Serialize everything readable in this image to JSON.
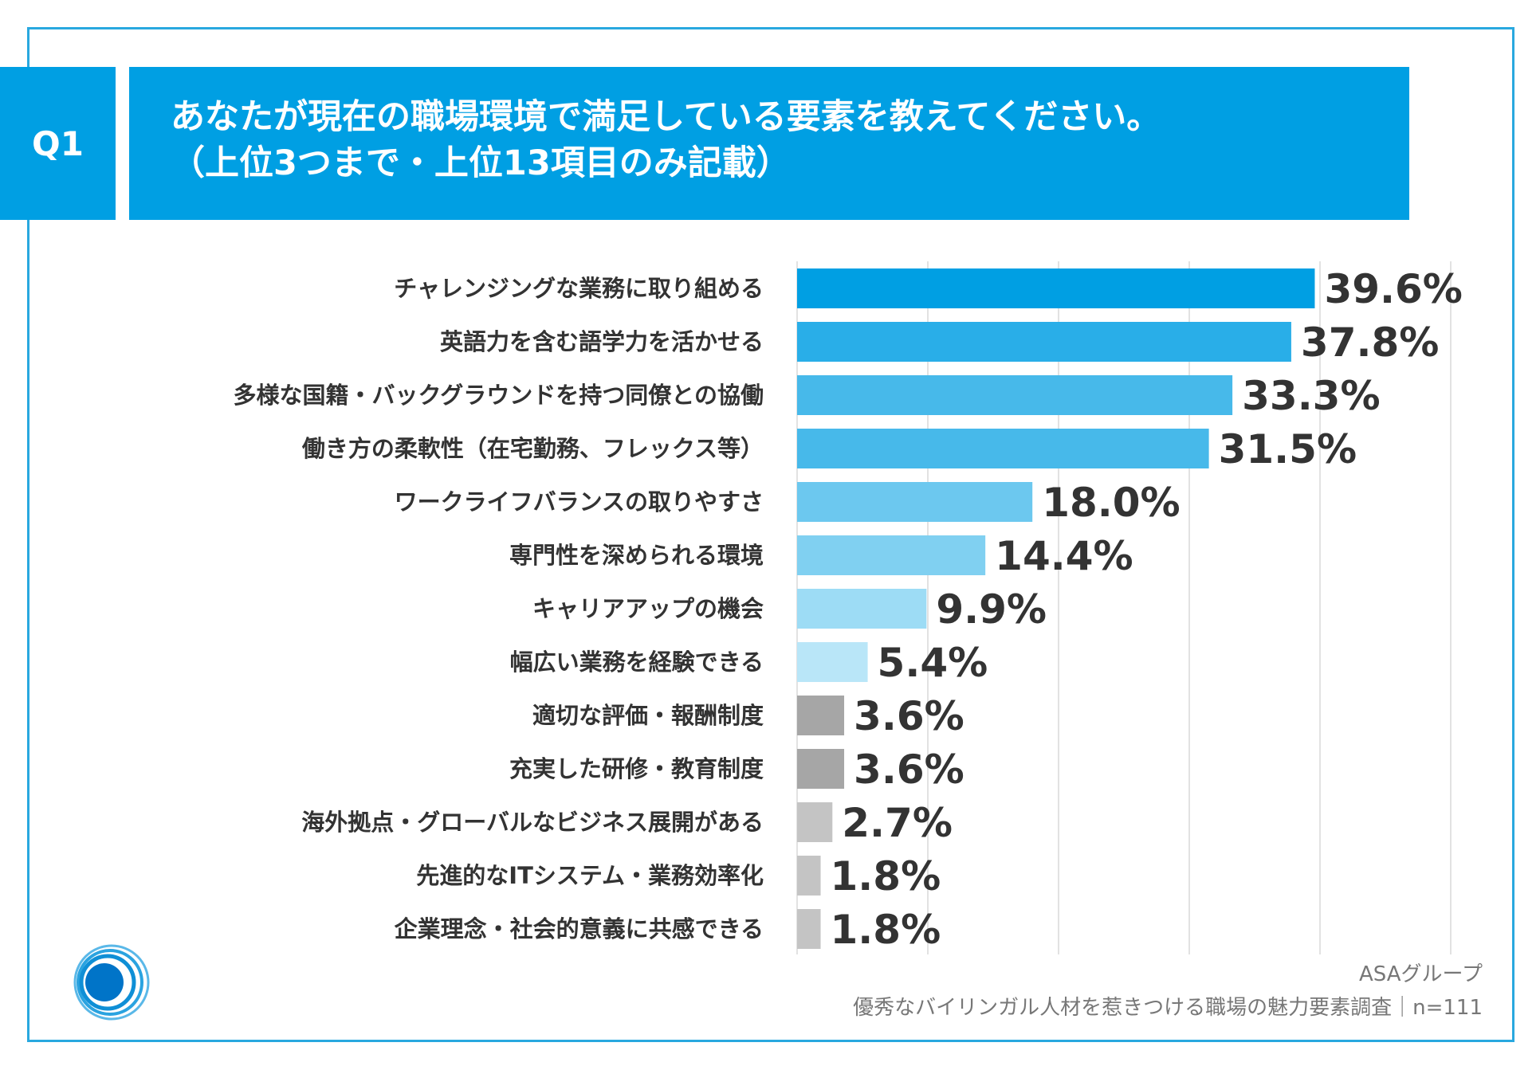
{
  "header": {
    "question_id": "Q1",
    "title_line1": "あなたが現在の職場環境で満足している要素を教えてください。",
    "title_line2": "（上位3つまで・上位13項目のみ記載）"
  },
  "chart_data": {
    "type": "bar",
    "orientation": "horizontal",
    "unit": "%",
    "xlim": [
      0,
      50
    ],
    "grid": true,
    "categories": [
      "チャレンジングな業務に取り組める",
      "英語力を含む語学力を活かせる",
      "多様な国籍・バックグラウンドを持つ同僚との協働",
      "働き方の柔軟性（在宅勤務、フレックス等）",
      "ワークライフバランスの取りやすさ",
      "専門性を深められる環境",
      "キャリアアップの機会",
      "幅広い業務を経験できる",
      "適切な評価・報酬制度",
      "充実した研修・教育制度",
      "海外拠点・グローバルなビジネス展開がある",
      "先進的なITシステム・業務効率化",
      "企業理念・社会的意義に共感できる"
    ],
    "values": [
      39.6,
      37.8,
      33.3,
      31.5,
      18.0,
      14.4,
      9.9,
      5.4,
      3.6,
      3.6,
      2.7,
      1.8,
      1.8
    ],
    "value_labels": [
      "39.6%",
      "37.8%",
      "33.3%",
      "31.5%",
      "18.0%",
      "14.4%",
      "9.9%",
      "5.4%",
      "3.6%",
      "3.6%",
      "2.7%",
      "1.8%",
      "1.8%"
    ],
    "bar_colors": [
      "#009fe3",
      "#29aee8",
      "#47b9ea",
      "#47b9ea",
      "#6cc8ef",
      "#80d0f1",
      "#9ddcf5",
      "#b9e6f8",
      "#a6a6a6",
      "#a6a6a6",
      "#c4c4c4",
      "#c4c4c4",
      "#c4c4c4"
    ]
  },
  "footer": {
    "source_line1": "ASAグループ",
    "source_line2": "優秀なバイリンガル人材を惹きつける職場の魅力要素調査｜n=111"
  },
  "colors": {
    "accent": "#009fe3",
    "frame": "#29a8df",
    "text": "#333333",
    "grid": "#d9d9d9"
  }
}
